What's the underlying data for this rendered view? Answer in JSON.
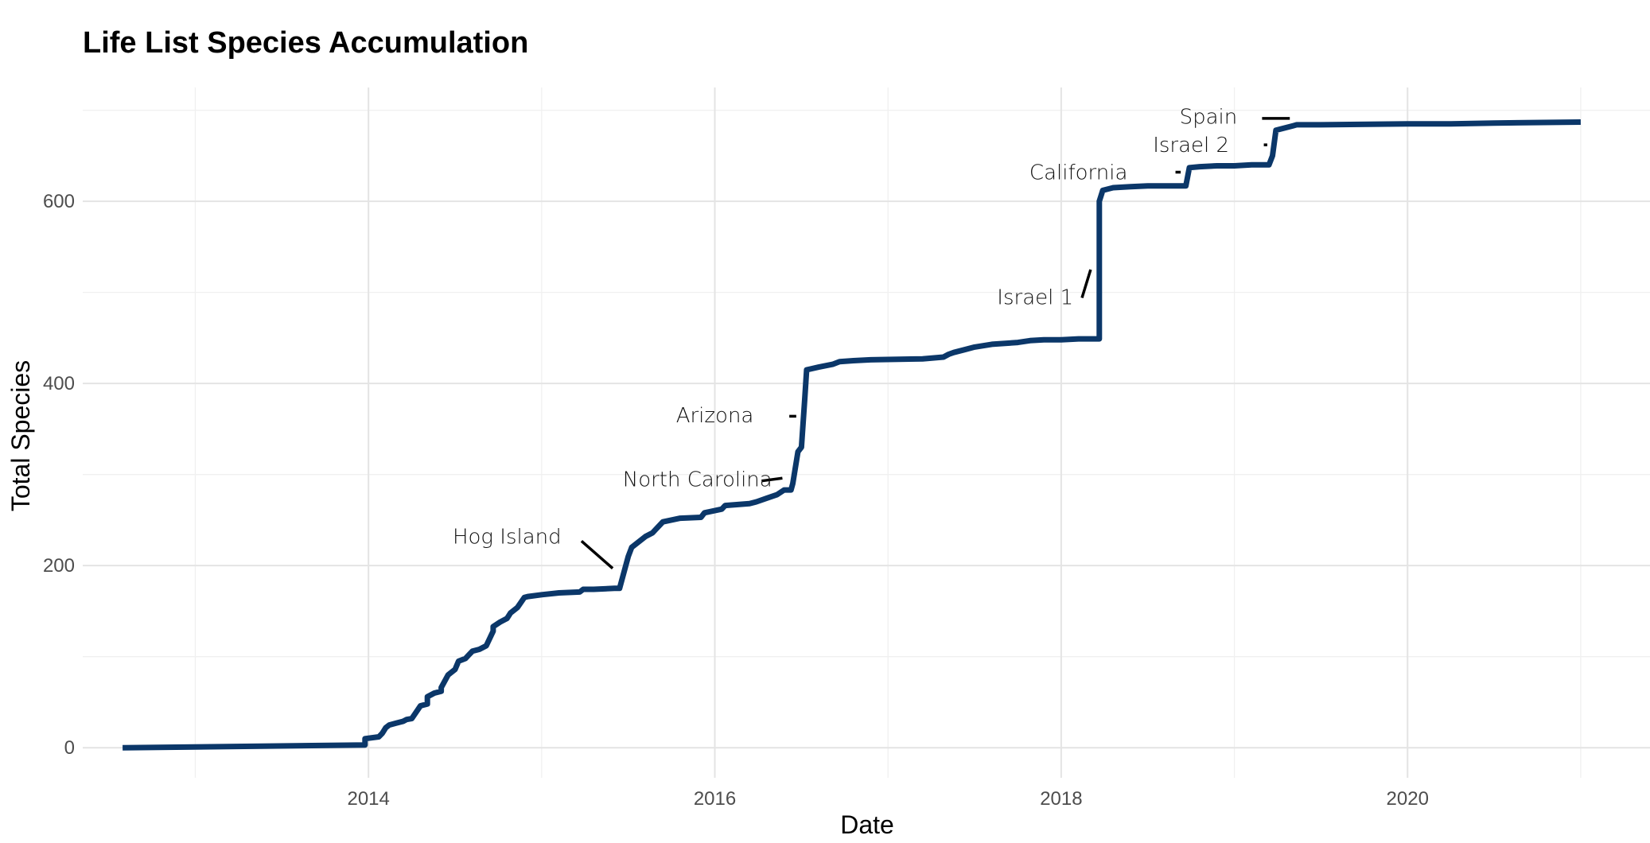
{
  "chart_data": {
    "type": "line",
    "title": "Life List Species Accumulation",
    "xlabel": "Date",
    "ylabel": "Total Species",
    "xlim": [
      2012.35,
      2021.4
    ],
    "ylim": [
      -33,
      725
    ],
    "x_ticks": [
      2014,
      2016,
      2018,
      2020
    ],
    "x_tick_labels": [
      "2014",
      "2016",
      "2018",
      "2020"
    ],
    "x_minor_ticks": [
      2013,
      2015,
      2017,
      2019,
      2021
    ],
    "y_ticks": [
      0,
      200,
      400,
      600
    ],
    "y_tick_labels": [
      "0",
      "200",
      "400",
      "600"
    ],
    "y_minor_ticks": [
      100,
      300,
      500,
      700
    ],
    "grid": true,
    "line_color": "#0b3769",
    "series": [
      {
        "name": "Total Species",
        "x": [
          2012.58,
          2013.98,
          2013.98,
          2014.06,
          2014.08,
          2014.1,
          2014.12,
          2014.16,
          2014.2,
          2014.22,
          2014.25,
          2014.3,
          2014.34,
          2014.34,
          2014.38,
          2014.42,
          2014.42,
          2014.46,
          2014.5,
          2014.52,
          2014.56,
          2014.58,
          2014.6,
          2014.64,
          2014.68,
          2014.72,
          2014.72,
          2014.76,
          2014.8,
          2014.82,
          2014.86,
          2014.9,
          2014.92,
          2015,
          2015.1,
          2015.22,
          2015.24,
          2015.3,
          2015.42,
          2015.45,
          2015.5,
          2015.52,
          2015.6,
          2015.64,
          2015.66,
          2015.7,
          2015.8,
          2015.92,
          2015.94,
          2016.04,
          2016.06,
          2016.2,
          2016.24,
          2016.3,
          2016.36,
          2016.4,
          2016.44,
          2016.45,
          2016.48,
          2016.5,
          2016.52,
          2016.53,
          2016.6,
          2016.68,
          2016.72,
          2016.8,
          2016.9,
          2017.2,
          2017.32,
          2017.35,
          2017.38,
          2017.44,
          2017.5,
          2017.6,
          2017.75,
          2017.82,
          2017.9,
          2018.0,
          2018.1,
          2018.22,
          2018.22,
          2018.24,
          2018.3,
          2018.4,
          2018.5,
          2018.6,
          2018.72,
          2018.74,
          2018.8,
          2018.9,
          2019.0,
          2019.1,
          2019.2,
          2019.22,
          2019.24,
          2019.28,
          2019.34,
          2019.36,
          2019.4,
          2019.5,
          2020.0,
          2020.25,
          2020.5,
          2021.0
        ],
        "values": [
          0,
          3,
          10,
          12,
          16,
          22,
          25,
          27,
          29,
          31,
          32,
          46,
          48,
          56,
          60,
          62,
          66,
          80,
          86,
          95,
          98,
          102,
          106,
          108,
          112,
          128,
          133,
          138,
          142,
          148,
          154,
          165,
          166,
          168,
          170,
          171,
          174,
          174,
          175,
          175,
          210,
          220,
          232,
          236,
          240,
          248,
          252,
          253,
          258,
          262,
          266,
          268,
          270,
          274,
          278,
          283,
          283,
          290,
          325,
          330,
          385,
          415,
          418,
          421,
          424,
          425,
          426,
          427,
          429,
          432,
          434,
          437,
          440,
          443,
          445,
          447,
          448,
          448,
          449,
          449,
          600,
          612,
          615,
          616,
          617,
          617,
          617,
          637,
          638,
          639,
          639,
          640,
          640,
          650,
          678,
          680,
          683,
          684,
          684,
          684,
          685,
          685,
          686,
          687
        ]
      }
    ],
    "annotations": [
      {
        "label": "Hog Island",
        "x": 2014.8,
        "y": 232,
        "seg_start": [
          2015.23,
          227
        ],
        "seg_end": [
          2015.41,
          197
        ]
      },
      {
        "label": "North Carolina",
        "x": 2015.9,
        "y": 295,
        "seg_start": [
          2016.27,
          293
        ],
        "seg_end": [
          2016.39,
          296
        ]
      },
      {
        "label": "Arizona",
        "x": 2016.0,
        "y": 365,
        "seg_start": [
          2016.43,
          364
        ],
        "seg_end": [
          2016.47,
          364
        ]
      },
      {
        "label": "Israel 1",
        "x": 2017.85,
        "y": 495,
        "seg_start": [
          2018.12,
          494
        ],
        "seg_end": [
          2018.17,
          525
        ]
      },
      {
        "label": "California",
        "x": 2018.1,
        "y": 632,
        "seg_start": [
          2018.66,
          632
        ],
        "seg_end": [
          2018.69,
          632
        ]
      },
      {
        "label": "Israel 2",
        "x": 2018.75,
        "y": 662,
        "seg_start": [
          2019.17,
          662
        ],
        "seg_end": [
          2019.19,
          662
        ]
      },
      {
        "label": "Spain",
        "x": 2018.85,
        "y": 693,
        "seg_start": [
          2019.16,
          691
        ],
        "seg_end": [
          2019.32,
          691
        ]
      }
    ]
  }
}
